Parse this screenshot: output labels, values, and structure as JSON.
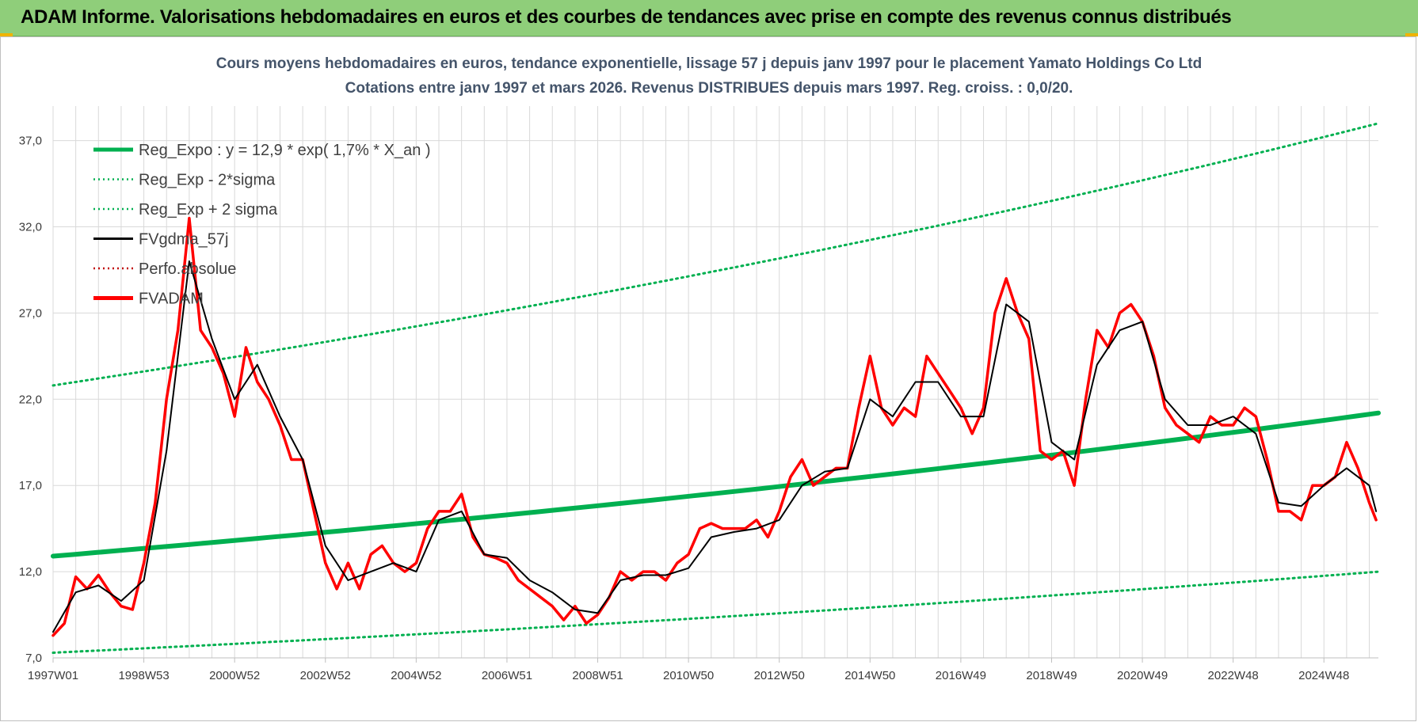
{
  "header": {
    "title": "ADAM Informe. Valorisations hebdomadaires en euros et des courbes de tendances avec prise en compte des revenus connus distribués"
  },
  "colors": {
    "banner": "#8fce7a",
    "regression": "#00b050",
    "bands": "#00b050",
    "smoothed": "#000000",
    "perf": "#c00000",
    "fvadam": "#ff0000",
    "grid": "#d9d9d9"
  },
  "chart_data": {
    "type": "line",
    "title": "Cours moyens hebdomadaires en euros, tendance exponentielle, lissage 57 j depuis janv 1997 pour le placement Yamato Holdings Co Ltd",
    "subtitle": "Cotations entre janv 1997 et mars 2026. Revenus DISTRIBUES depuis mars 1997. Reg. croiss. : 0,0/20.",
    "xlabel": "",
    "ylabel": "",
    "ylim": [
      7,
      39
    ],
    "xlim": [
      1997.0,
      2026.2
    ],
    "grid": true,
    "legend_position": "top-left",
    "y_ticks": [
      "7,0",
      "12,0",
      "17,0",
      "22,0",
      "27,0",
      "32,0",
      "37,0"
    ],
    "x_ticks": [
      {
        "label": "1997W01",
        "x": 1997.0
      },
      {
        "label": "1998W53",
        "x": 1999.0
      },
      {
        "label": "2000W52",
        "x": 2001.0
      },
      {
        "label": "2002W52",
        "x": 2003.0
      },
      {
        "label": "2004W52",
        "x": 2005.0
      },
      {
        "label": "2006W51",
        "x": 2007.0
      },
      {
        "label": "2008W51",
        "x": 2009.0
      },
      {
        "label": "2010W50",
        "x": 2011.0
      },
      {
        "label": "2012W50",
        "x": 2013.0
      },
      {
        "label": "2014W50",
        "x": 2015.0
      },
      {
        "label": "2016W49",
        "x": 2017.0
      },
      {
        "label": "2018W49",
        "x": 2019.0
      },
      {
        "label": "2020W49",
        "x": 2021.0
      },
      {
        "label": "2022W48",
        "x": 2023.0
      },
      {
        "label": "2024W48",
        "x": 2025.0
      }
    ],
    "legend": [
      {
        "name": "Reg_Expo : y = 12,9 * exp( 1,7% *  X_an )",
        "style": "solid-thick",
        "color": "#00b050"
      },
      {
        "name": "Reg_Exp - 2*sigma",
        "style": "dotted",
        "color": "#00b050"
      },
      {
        "name": "Reg_Exp + 2 sigma",
        "style": "dotted",
        "color": "#00b050"
      },
      {
        "name": "FVgdma_57j",
        "style": "solid",
        "color": "#000000"
      },
      {
        "name": "Perfo.absolue",
        "style": "dotted",
        "color": "#c00000"
      },
      {
        "name": "FVADAM",
        "style": "solid-thick",
        "color": "#ff0000"
      }
    ],
    "series": [
      {
        "name": "Reg_Expo : y = 12,9 * exp( 1,7% *  X_an )",
        "x": [
          1997.0,
          2026.2
        ],
        "values": [
          12.9,
          21.2
        ]
      },
      {
        "name": "Reg_Exp - 2*sigma",
        "x": [
          1997.0,
          2026.2
        ],
        "values": [
          7.3,
          12.0
        ]
      },
      {
        "name": "Reg_Exp + 2 sigma",
        "x": [
          1997.0,
          2026.2
        ],
        "values": [
          22.8,
          38.0
        ]
      },
      {
        "name": "FVADAM",
        "x": [
          1997.0,
          1997.25,
          1997.5,
          1997.75,
          1998.0,
          1998.25,
          1998.5,
          1998.75,
          1999.0,
          1999.25,
          1999.5,
          1999.75,
          2000.0,
          2000.25,
          2000.5,
          2000.75,
          2001.0,
          2001.25,
          2001.5,
          2001.75,
          2002.0,
          2002.25,
          2002.5,
          2002.75,
          2003.0,
          2003.25,
          2003.5,
          2003.75,
          2004.0,
          2004.25,
          2004.5,
          2004.75,
          2005.0,
          2005.25,
          2005.5,
          2005.75,
          2006.0,
          2006.25,
          2006.5,
          2006.75,
          2007.0,
          2007.25,
          2007.5,
          2007.75,
          2008.0,
          2008.25,
          2008.5,
          2008.75,
          2009.0,
          2009.25,
          2009.5,
          2009.75,
          2010.0,
          2010.25,
          2010.5,
          2010.75,
          2011.0,
          2011.25,
          2011.5,
          2011.75,
          2012.0,
          2012.25,
          2012.5,
          2012.75,
          2013.0,
          2013.25,
          2013.5,
          2013.75,
          2014.0,
          2014.25,
          2014.5,
          2014.75,
          2015.0,
          2015.25,
          2015.5,
          2015.75,
          2016.0,
          2016.25,
          2016.5,
          2016.75,
          2017.0,
          2017.25,
          2017.5,
          2017.75,
          2018.0,
          2018.25,
          2018.5,
          2018.75,
          2019.0,
          2019.25,
          2019.5,
          2019.75,
          2020.0,
          2020.25,
          2020.5,
          2020.75,
          2021.0,
          2021.25,
          2021.5,
          2021.75,
          2022.0,
          2022.25,
          2022.5,
          2022.75,
          2023.0,
          2023.25,
          2023.5,
          2023.75,
          2024.0,
          2024.25,
          2024.5,
          2024.75,
          2025.0,
          2025.25,
          2025.5,
          2025.75,
          2026.0,
          2026.15
        ],
        "values": [
          8.3,
          9.0,
          11.7,
          11.0,
          11.8,
          10.8,
          10.0,
          9.8,
          12.5,
          16.0,
          22.0,
          26.0,
          32.5,
          26.0,
          25.0,
          23.5,
          21.0,
          25.0,
          23.0,
          22.0,
          20.5,
          18.5,
          18.5,
          15.5,
          12.5,
          11.0,
          12.5,
          11.0,
          13.0,
          13.5,
          12.5,
          12.0,
          12.5,
          14.5,
          15.5,
          15.5,
          16.5,
          14.0,
          13.0,
          12.8,
          12.5,
          11.5,
          11.0,
          10.5,
          10.0,
          9.2,
          10.0,
          9.0,
          9.5,
          10.5,
          12.0,
          11.5,
          12.0,
          12.0,
          11.5,
          12.5,
          13.0,
          14.5,
          14.8,
          14.5,
          14.5,
          14.5,
          15.0,
          14.0,
          15.5,
          17.5,
          18.5,
          17.0,
          17.5,
          18.0,
          18.0,
          21.5,
          24.5,
          21.5,
          20.5,
          21.5,
          21.0,
          24.5,
          23.5,
          22.5,
          21.5,
          20.0,
          21.5,
          27.0,
          29.0,
          27.0,
          25.5,
          19.0,
          18.5,
          19.0,
          17.0,
          22.0,
          26.0,
          25.0,
          27.0,
          27.5,
          26.5,
          24.5,
          21.5,
          20.5,
          20.0,
          19.5,
          21.0,
          20.5,
          20.5,
          21.5,
          21.0,
          18.5,
          15.5,
          15.5,
          15.0,
          17.0,
          17.0,
          17.5,
          19.5,
          18.0,
          16.0,
          15.0
        ]
      },
      {
        "name": "FVgdma_57j",
        "x": [
          1997.0,
          1997.5,
          1998.0,
          1998.5,
          1999.0,
          1999.5,
          2000.0,
          2000.5,
          2001.0,
          2001.5,
          2002.0,
          2002.5,
          2003.0,
          2003.5,
          2004.0,
          2004.5,
          2005.0,
          2005.5,
          2006.0,
          2006.5,
          2007.0,
          2007.5,
          2008.0,
          2008.5,
          2009.0,
          2009.5,
          2010.0,
          2010.5,
          2011.0,
          2011.5,
          2012.0,
          2012.5,
          2013.0,
          2013.5,
          2014.0,
          2014.5,
          2015.0,
          2015.5,
          2016.0,
          2016.5,
          2017.0,
          2017.5,
          2018.0,
          2018.5,
          2019.0,
          2019.5,
          2020.0,
          2020.5,
          2021.0,
          2021.5,
          2022.0,
          2022.5,
          2023.0,
          2023.5,
          2024.0,
          2024.5,
          2025.0,
          2025.5,
          2026.0,
          2026.15
        ],
        "values": [
          8.5,
          10.8,
          11.2,
          10.3,
          11.5,
          19.0,
          30.0,
          25.5,
          22.0,
          24.0,
          21.0,
          18.5,
          13.5,
          11.5,
          12.0,
          12.5,
          12.0,
          15.0,
          15.5,
          13.0,
          12.8,
          11.5,
          10.8,
          9.8,
          9.6,
          11.5,
          11.8,
          11.8,
          12.2,
          14.0,
          14.3,
          14.5,
          15.0,
          17.0,
          17.8,
          18.0,
          22.0,
          21.0,
          23.0,
          23.0,
          21.0,
          21.0,
          27.5,
          26.5,
          19.5,
          18.5,
          24.0,
          26.0,
          26.5,
          22.0,
          20.5,
          20.5,
          21.0,
          20.0,
          16.0,
          15.8,
          17.0,
          18.0,
          17.0,
          15.5
        ]
      }
    ]
  }
}
